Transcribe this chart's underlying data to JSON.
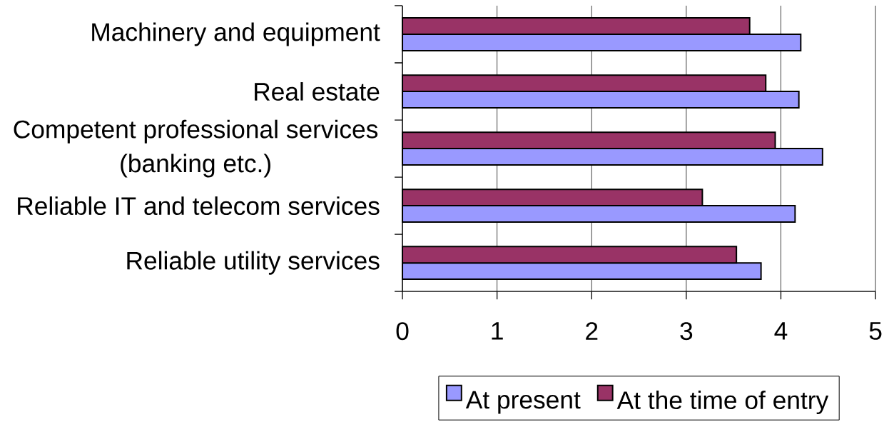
{
  "chart_data": {
    "type": "bar",
    "orientation": "horizontal",
    "categories": [
      "Machinery and equipment",
      "Real estate",
      "Competent professional services (banking etc.)",
      "Reliable IT and telecom services",
      "Reliable utility services"
    ],
    "series": [
      {
        "name": "At present",
        "color": "#9999ff",
        "values": [
          4.21,
          4.19,
          4.44,
          4.15,
          3.79
        ]
      },
      {
        "name": "At the time of entry",
        "color": "#993366",
        "values": [
          3.67,
          3.84,
          3.94,
          3.17,
          3.53
        ]
      }
    ],
    "xlim": [
      0,
      5
    ],
    "xticks": [
      0,
      1,
      2,
      3,
      4,
      5
    ],
    "grid": "x",
    "legend": "bottom"
  }
}
